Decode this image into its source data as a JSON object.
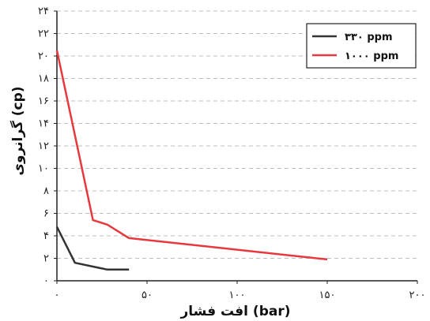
{
  "chart_data": {
    "type": "line",
    "xlabel": "افت فشار (bar)",
    "ylabel": "گرانروی (cp)",
    "xlim": [
      0,
      200
    ],
    "ylim": [
      0,
      24
    ],
    "x_ticks": [
      0,
      50,
      100,
      150,
      200
    ],
    "x_tick_labels": [
      "۰",
      "۵۰",
      "۱۰۰",
      "۱۵۰",
      "۲۰۰"
    ],
    "y_ticks": [
      0,
      2,
      4,
      6,
      8,
      10,
      12,
      14,
      16,
      18,
      20,
      22,
      24
    ],
    "y_tick_labels": [
      "۰",
      "۲",
      "۴",
      "۶",
      "۸",
      "۱۰",
      "۱۲",
      "۱۴",
      "۱۶",
      "۱۸",
      "۲۰",
      "۲۲",
      "۲۴"
    ],
    "grid": "horizontal dashed",
    "legend_position": "top-right",
    "series": [
      {
        "name": "۳۳۰ ppm",
        "color": "#333333",
        "x": [
          0,
          10,
          28,
          40
        ],
        "y": [
          4.8,
          1.6,
          1.0,
          1.0
        ]
      },
      {
        "name": "۱۰۰۰ ppm",
        "color": "#e8383d",
        "x": [
          0,
          20,
          28,
          40,
          150
        ],
        "y": [
          20.5,
          5.4,
          5.0,
          3.8,
          1.9
        ]
      }
    ]
  }
}
